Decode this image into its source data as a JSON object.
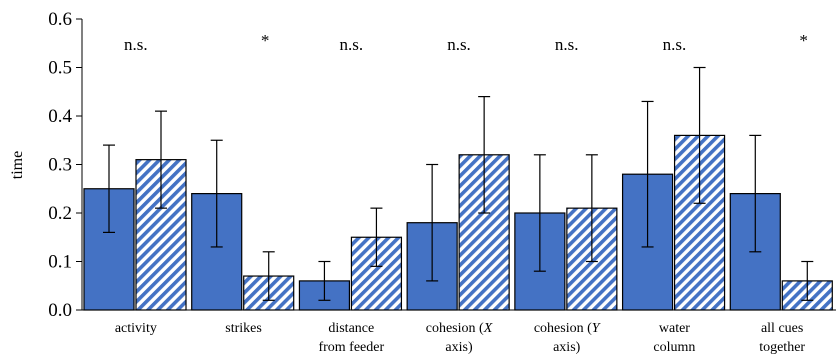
{
  "chart_data": {
    "type": "bar",
    "ylabel": "time",
    "ylim": [
      0,
      0.6
    ],
    "yticks": [
      "0.0",
      "0.1",
      "0.2",
      "0.3",
      "0.4",
      "0.5",
      "0.6"
    ],
    "categories": [
      {
        "lines": [
          "activity"
        ]
      },
      {
        "lines": [
          "strikes"
        ]
      },
      {
        "lines": [
          "distance",
          "from feeder"
        ]
      },
      {
        "lines": [
          "cohesion (X",
          "axis)"
        ],
        "italic": "X"
      },
      {
        "lines": [
          "cohesion (Y",
          "axis)"
        ],
        "italic": "Y"
      },
      {
        "lines": [
          "water",
          "column"
        ]
      },
      {
        "lines": [
          "all cues",
          "together"
        ]
      }
    ],
    "significance": [
      "n.s.",
      "*",
      "n.s.",
      "n.s.",
      "n.s.",
      "n.s.",
      "*"
    ],
    "series": [
      {
        "style": "solid",
        "color": "#4472c4",
        "values": [
          0.25,
          0.24,
          0.06,
          0.18,
          0.2,
          0.28,
          0.24
        ],
        "err_low": [
          0.16,
          0.13,
          0.02,
          0.06,
          0.08,
          0.13,
          0.12
        ],
        "err_high": [
          0.34,
          0.35,
          0.1,
          0.3,
          0.32,
          0.43,
          0.36
        ]
      },
      {
        "style": "hatched",
        "color": "#4472c4",
        "values": [
          0.31,
          0.07,
          0.15,
          0.32,
          0.21,
          0.36,
          0.06
        ],
        "err_low": [
          0.21,
          0.02,
          0.09,
          0.2,
          0.1,
          0.22,
          0.02
        ],
        "err_high": [
          0.41,
          0.12,
          0.21,
          0.44,
          0.32,
          0.5,
          0.1
        ]
      }
    ]
  }
}
